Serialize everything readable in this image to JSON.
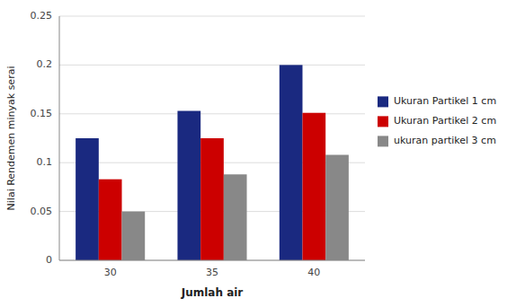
{
  "chart_data": {
    "type": "bar",
    "categories": [
      "30",
      "35",
      "40"
    ],
    "series": [
      {
        "name": "Ukuran Partikel 1 cm",
        "color": "#1A2980",
        "values": [
          0.125,
          0.153,
          0.2
        ]
      },
      {
        "name": "Ukuran Partikel 2 cm",
        "color": "#CC0000",
        "values": [
          0.083,
          0.125,
          0.151
        ]
      },
      {
        "name": "ukuran partikel 3 cm",
        "color": "#888888",
        "values": [
          0.05,
          0.088,
          0.108
        ]
      }
    ],
    "x_label": "Jumlah air",
    "y_label": "Nilai Rendemen minyak serai",
    "ylim": [
      0,
      0.25
    ],
    "yticks": [
      0,
      0.05,
      0.1,
      0.15,
      0.2,
      0.25
    ],
    "grid": true,
    "legend": "right"
  }
}
